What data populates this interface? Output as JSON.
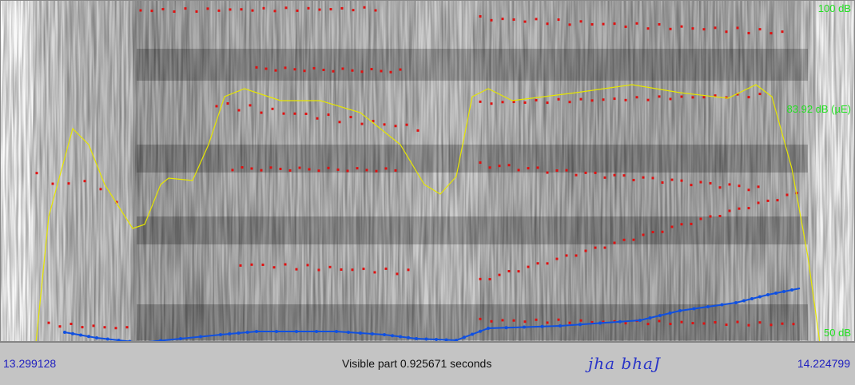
{
  "display": {
    "db_top": "100 dB",
    "db_mid": "83.92 dB (µE)",
    "db_bottom": "50 dB"
  },
  "status": {
    "start_time": "13.299128",
    "end_time": "14.224799",
    "visible_part": "Visible part 0.925671 seconds",
    "transcription": "jha bhaJ"
  },
  "colors": {
    "formant": "#e01010",
    "intensity": "#e6e600",
    "pitch": "#1050e0",
    "db_label": "#22e022"
  }
}
